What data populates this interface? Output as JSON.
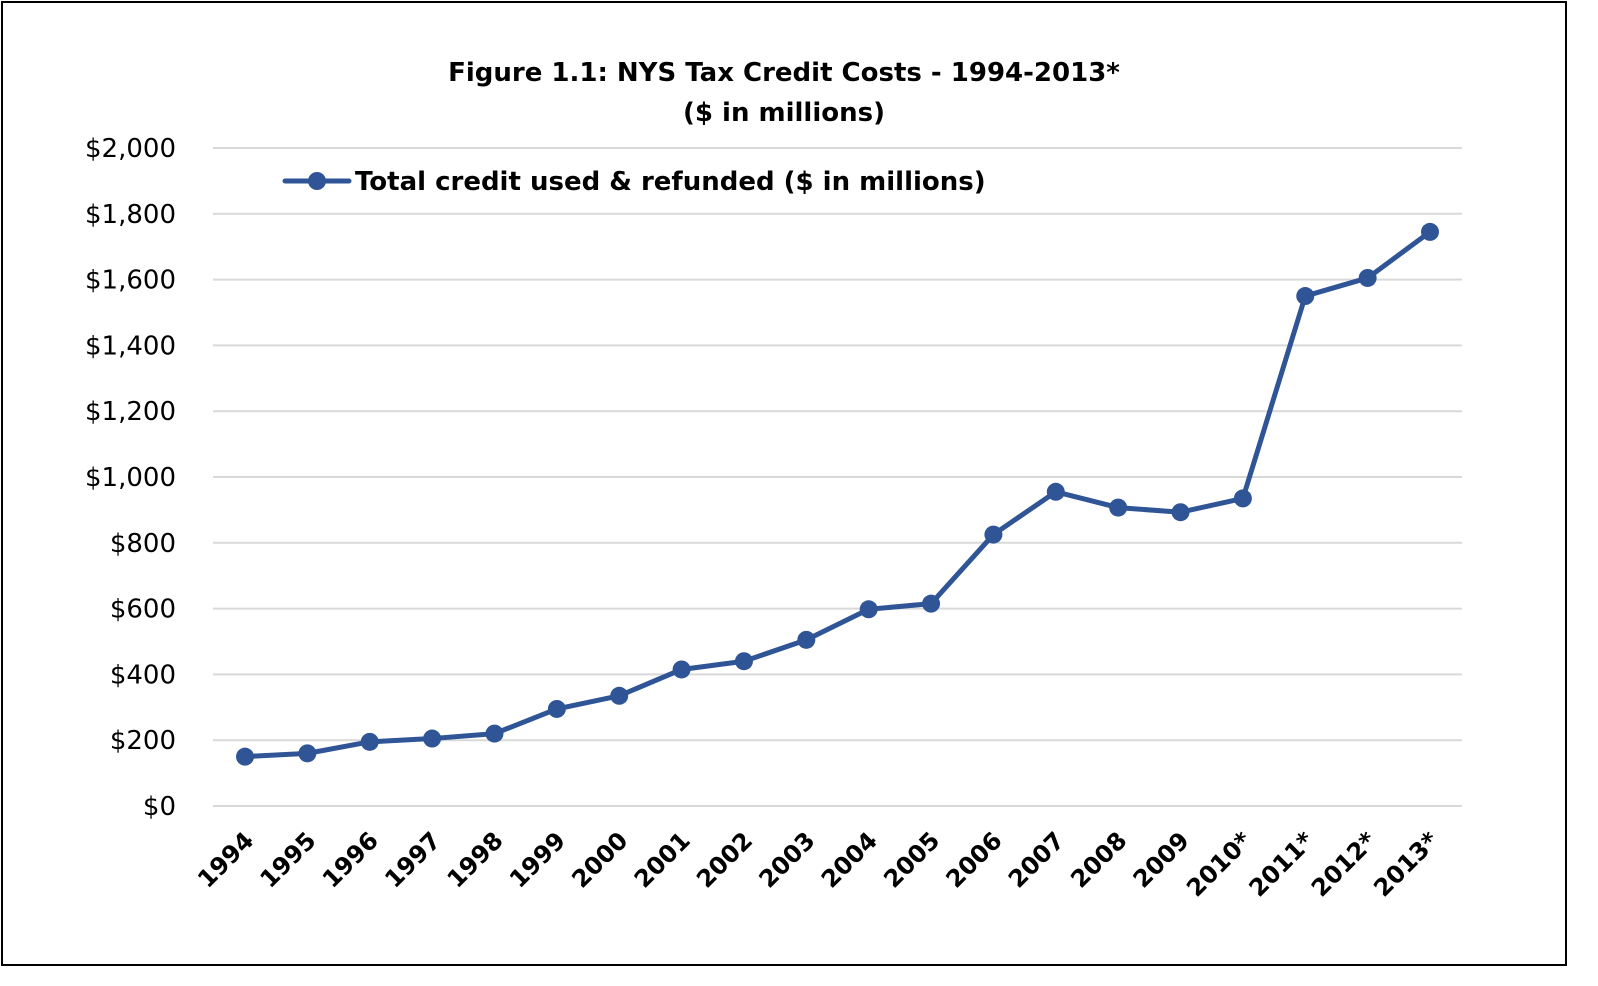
{
  "chart_data": {
    "type": "line",
    "title": "Figure 1.1: NYS Tax Credit Costs - 1994-2013*",
    "subtitle": "($ in millions)",
    "xlabel": "",
    "ylabel": "",
    "categories": [
      "1994",
      "1995",
      "1996",
      "1997",
      "1998",
      "1999",
      "2000",
      "2001",
      "2002",
      "2003",
      "2004",
      "2005",
      "2006",
      "2007",
      "2008",
      "2009",
      "2010*",
      "2011*",
      "2012*",
      "2013*"
    ],
    "series": [
      {
        "name": "Total credit used & refunded ($ in millions)",
        "color": "#2F5597",
        "values": [
          150,
          160,
          195,
          205,
          220,
          295,
          335,
          415,
          440,
          505,
          598,
          615,
          825,
          955,
          907,
          893,
          935,
          1550,
          1605,
          1745
        ]
      }
    ],
    "ylim": [
      0,
      2000
    ],
    "yticks": [
      0,
      200,
      400,
      600,
      800,
      1000,
      1200,
      1400,
      1600,
      1800,
      2000
    ],
    "ytick_labels": [
      "$0",
      "$200",
      "$400",
      "$600",
      "$800",
      "$1,000",
      "$1,200",
      "$1,400",
      "$1,600",
      "$1,800",
      "$2,000"
    ],
    "grid": true,
    "legend_position": "top-left"
  }
}
